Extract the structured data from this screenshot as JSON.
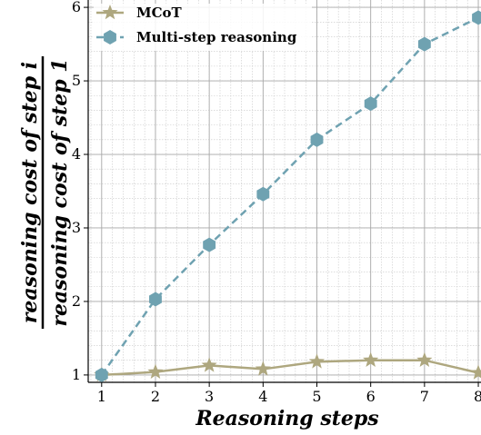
{
  "chart_data": {
    "type": "line",
    "title": "",
    "xlabel": "Reasoning steps",
    "ylabel_numerator": "reasoning cost of step i",
    "ylabel_denominator": "reasoning cost of step 1",
    "x": [
      1,
      2,
      3,
      4,
      5,
      6,
      7,
      8
    ],
    "xlim": [
      0.75,
      8.05
    ],
    "ylim": [
      0.9,
      6.1
    ],
    "x_ticks": [
      "1",
      "2",
      "3",
      "4",
      "5",
      "6",
      "7",
      "8"
    ],
    "y_ticks": [
      "1",
      "2",
      "3",
      "4",
      "5",
      "6"
    ],
    "grid": true,
    "minor_grid": true,
    "legend_position": "top-left",
    "series": [
      {
        "name": "MCoT",
        "marker": "star",
        "line_style": "solid",
        "color": "#aea77f",
        "values": [
          1.0,
          1.04,
          1.13,
          1.08,
          1.18,
          1.2,
          1.2,
          1.03
        ]
      },
      {
        "name": "Multi-step reasoning",
        "marker": "hexagon",
        "line_style": "dashed",
        "color": "#6fa2b1",
        "values": [
          1.0,
          2.03,
          2.77,
          3.46,
          4.2,
          4.69,
          5.5,
          5.86
        ]
      }
    ]
  }
}
